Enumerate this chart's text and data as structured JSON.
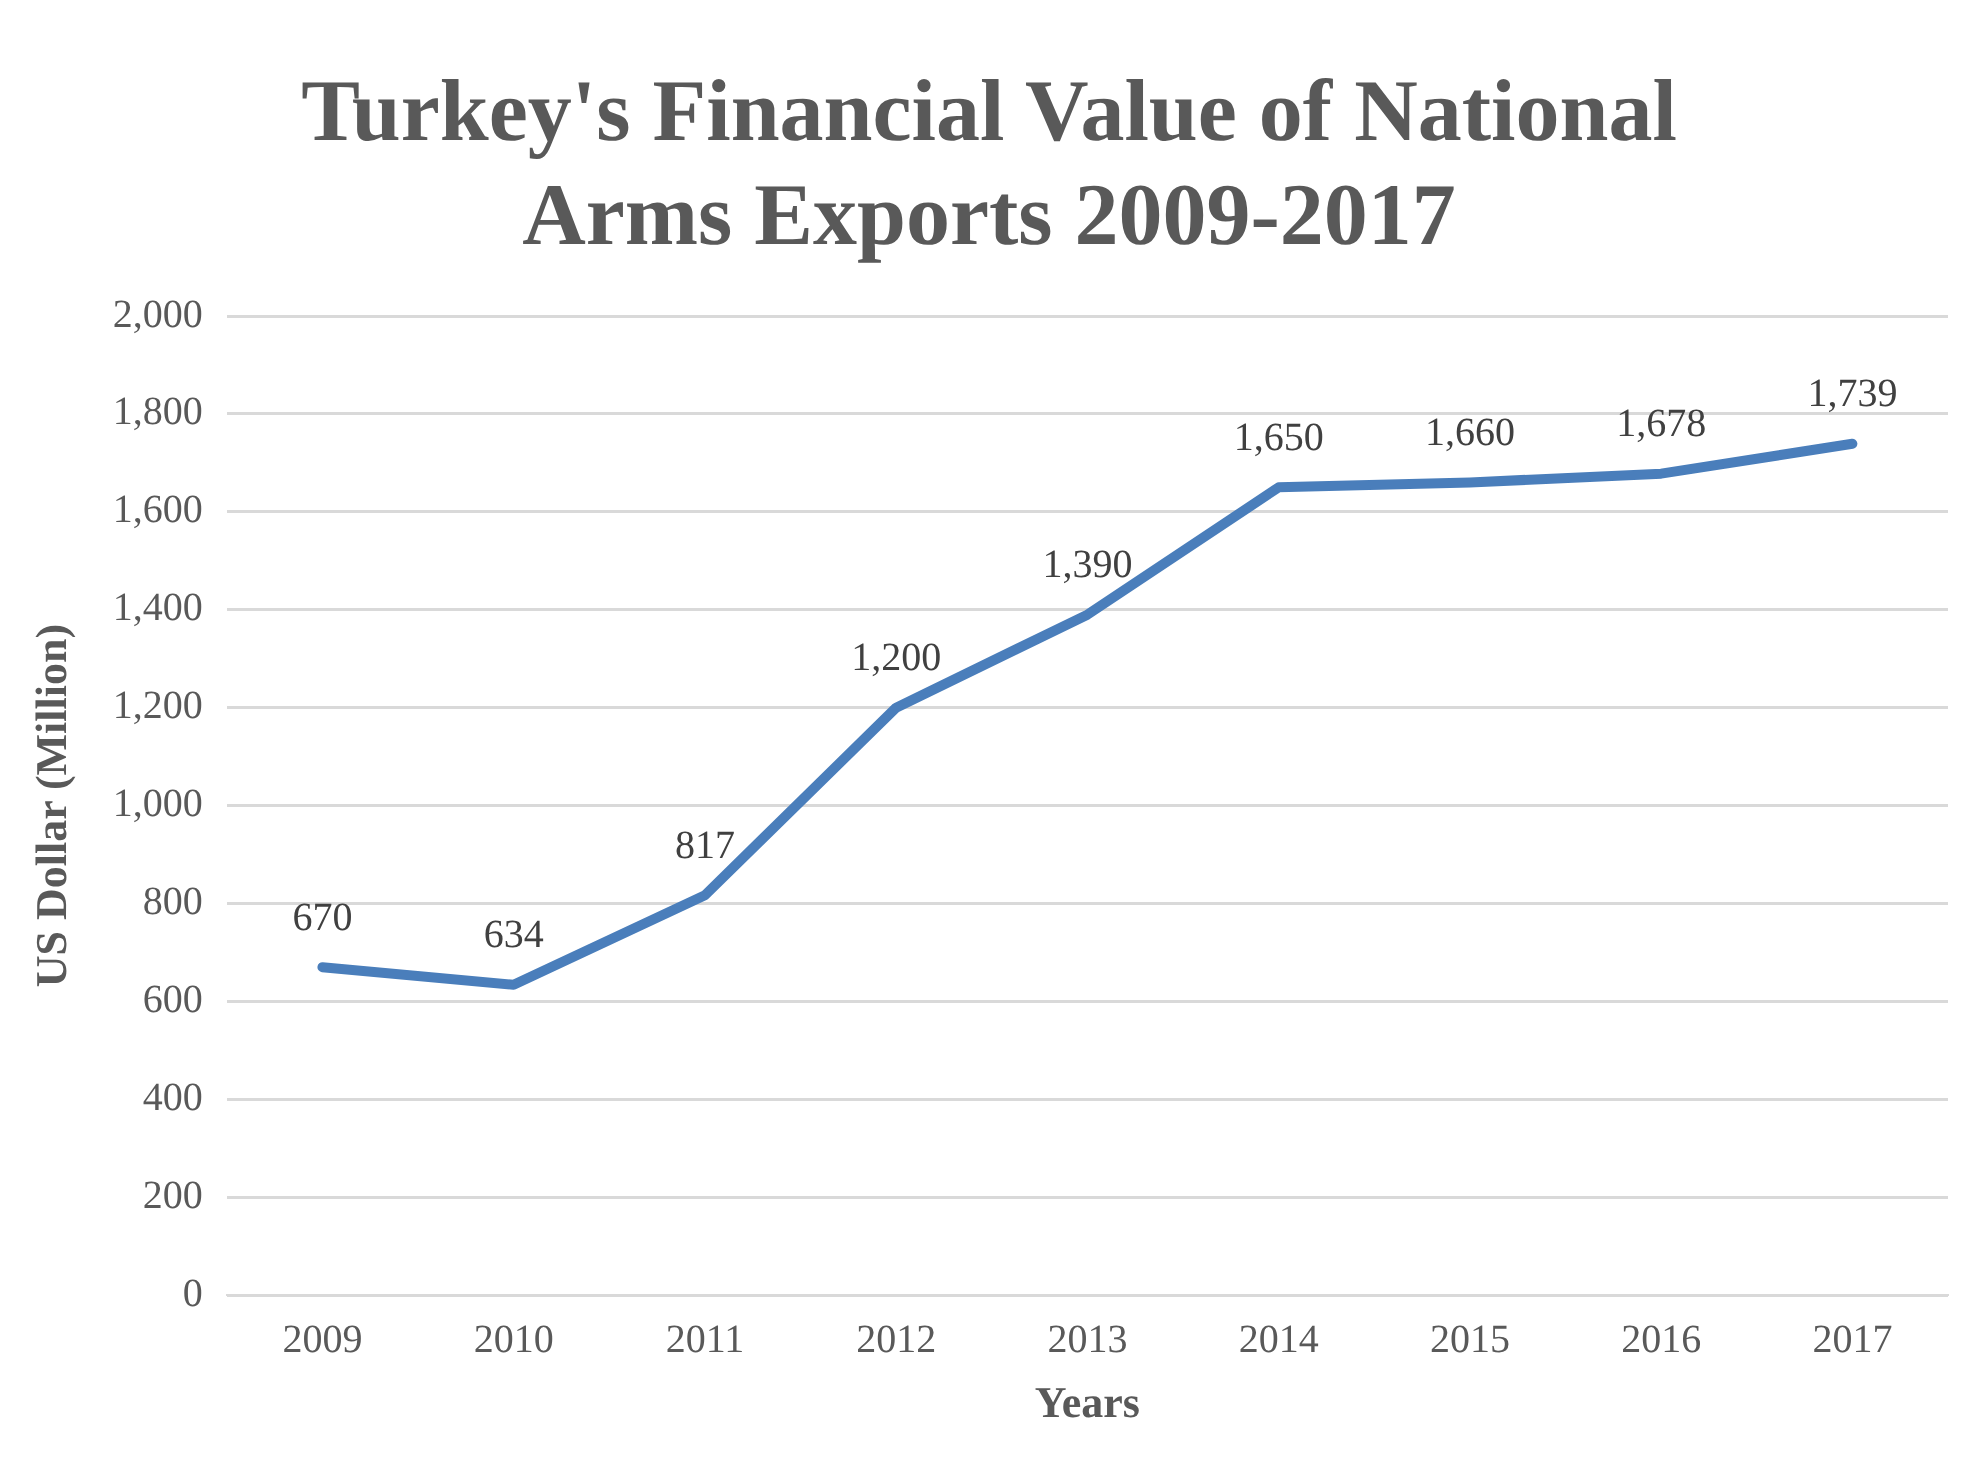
{
  "chart_data": {
    "type": "line",
    "title": "Turkey's Financial Value of National Arms Exports 2009-2017",
    "xlabel": "Years",
    "ylabel": "US Dollar (Million)",
    "categories": [
      "2009",
      "2010",
      "2011",
      "2012",
      "2013",
      "2014",
      "2015",
      "2016",
      "2017"
    ],
    "series": [
      {
        "color": "#4a7ebb",
        "values": [
          670,
          634,
          817,
          1200,
          1390,
          1650,
          1660,
          1678,
          1739
        ],
        "value_labels": [
          "670",
          "634",
          "817",
          "1,200",
          "1,390",
          "1,650",
          "1,660",
          "1,678",
          "1,739"
        ]
      }
    ],
    "ylim": [
      0,
      2000
    ],
    "yticks": [
      {
        "value": 0,
        "label": "0"
      },
      {
        "value": 200,
        "label": "200"
      },
      {
        "value": 400,
        "label": "400"
      },
      {
        "value": 600,
        "label": "600"
      },
      {
        "value": 800,
        "label": "800"
      },
      {
        "value": 1000,
        "label": "1,000"
      },
      {
        "value": 1200,
        "label": "1,200"
      },
      {
        "value": 1400,
        "label": "1,400"
      },
      {
        "value": 1600,
        "label": "1,600"
      },
      {
        "value": 1800,
        "label": "1,800"
      },
      {
        "value": 2000,
        "label": "2,000"
      }
    ],
    "grid": "y",
    "legend": false,
    "marker": "none",
    "line_style": "solid"
  }
}
